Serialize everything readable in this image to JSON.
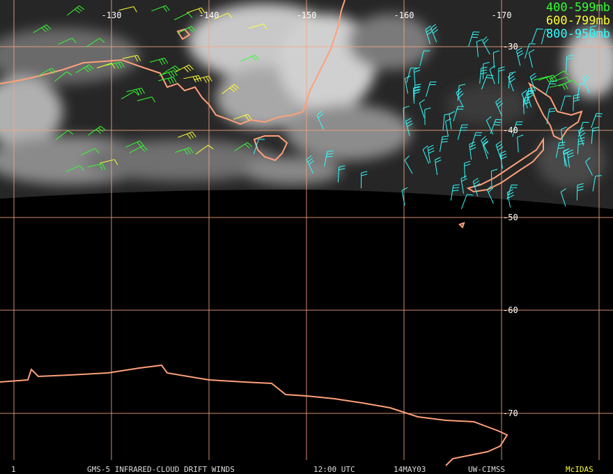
{
  "map": {
    "longitude_labels": [
      "-130",
      "-140",
      "-150",
      "-160",
      "-170"
    ],
    "latitude_labels": [
      "-30",
      "-40",
      "-50",
      "-60",
      "-70"
    ]
  },
  "legend": [
    {
      "label": "400-599mb",
      "color": "#33ff33"
    },
    {
      "label": "600-799mb",
      "color": "#ffff33"
    },
    {
      "label": "800-950mb",
      "color": "#33ffff"
    }
  ],
  "footer": {
    "frame": "1",
    "title": "GMS-5 INFRARED-CLOUD DRIFT WINDS",
    "time": "12:00 UTC",
    "date": "14MAY03",
    "source": "UW-CIMSS",
    "software": "McIDAS"
  }
}
